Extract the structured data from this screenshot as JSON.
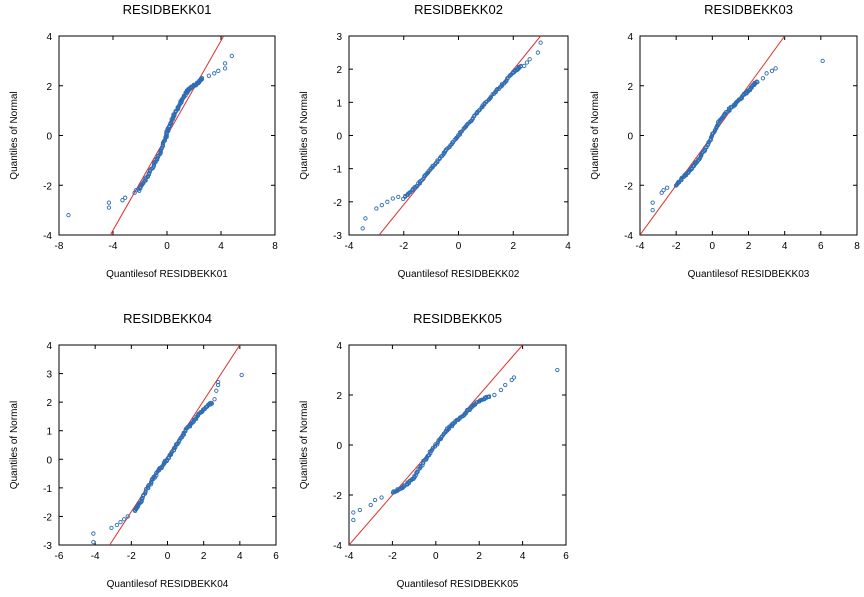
{
  "chart_data": [
    {
      "type": "scatter",
      "title": "RESIDBEKK01",
      "xlabel": "Quantilesof RESIDBEKK01",
      "ylabel": "Quantiles of Normal",
      "xlim": [
        -8,
        8
      ],
      "ylim": [
        -4,
        4
      ],
      "xticks": [
        -8,
        -4,
        0,
        4,
        8
      ],
      "yticks": [
        -4,
        -2,
        0,
        2,
        4
      ],
      "ref_line": [
        [
          -4.2,
          -4
        ],
        [
          4.2,
          4
        ]
      ],
      "dense": [
        [
          -2.1,
          -2.2
        ],
        [
          -1.6,
          -1.8
        ],
        [
          -1.0,
          -1.2
        ],
        [
          -0.5,
          -0.7
        ],
        [
          -0.1,
          -0.1
        ],
        [
          0.1,
          0.3
        ],
        [
          0.5,
          0.8
        ],
        [
          1.0,
          1.3
        ],
        [
          1.4,
          1.7
        ],
        [
          1.7,
          1.9
        ],
        [
          2.3,
          2.1
        ],
        [
          2.6,
          2.3
        ]
      ],
      "points": [
        [
          -7.3,
          -3.2
        ],
        [
          -4.3,
          -2.9
        ],
        [
          -4.3,
          -2.7
        ],
        [
          -3.3,
          -2.6
        ],
        [
          -3.1,
          -2.5
        ],
        [
          -2.4,
          -2.3
        ],
        [
          -2.3,
          -2.2
        ],
        [
          3.1,
          2.4
        ],
        [
          3.5,
          2.5
        ],
        [
          3.8,
          2.6
        ],
        [
          4.3,
          2.7
        ],
        [
          4.3,
          2.9
        ],
        [
          4.8,
          3.2
        ]
      ],
      "colors": {
        "points": "#2e6db4",
        "line": "#e0302a"
      }
    },
    {
      "type": "scatter",
      "title": "RESIDBEKK02",
      "xlabel": "Quantilesof RESIDBEKK02",
      "ylabel": "Quantiles of Normal",
      "xlim": [
        -4,
        4
      ],
      "ylim": [
        -3,
        3
      ],
      "xticks": [
        -4,
        -2,
        0,
        2,
        4
      ],
      "yticks": [
        -3,
        -2,
        -1,
        0,
        1,
        2,
        3
      ],
      "ref_line": [
        [
          -2.9,
          -3
        ],
        [
          3.0,
          3
        ]
      ],
      "dense": [
        [
          -2.0,
          -1.9
        ],
        [
          -1.5,
          -1.5
        ],
        [
          -1.0,
          -1.0
        ],
        [
          -0.5,
          -0.5
        ],
        [
          0.0,
          0.0
        ],
        [
          0.5,
          0.5
        ],
        [
          1.0,
          1.0
        ],
        [
          1.5,
          1.45
        ],
        [
          2.0,
          1.9
        ],
        [
          2.3,
          2.1
        ]
      ],
      "points": [
        [
          -3.5,
          -2.8
        ],
        [
          -3.4,
          -2.5
        ],
        [
          -3.0,
          -2.2
        ],
        [
          -2.8,
          -2.1
        ],
        [
          -2.6,
          -2.0
        ],
        [
          -2.4,
          -1.9
        ],
        [
          -2.2,
          -1.85
        ],
        [
          2.4,
          2.1
        ],
        [
          2.5,
          2.2
        ],
        [
          2.6,
          2.3
        ],
        [
          2.9,
          2.5
        ],
        [
          3.0,
          2.8
        ]
      ],
      "colors": {
        "points": "#2e6db4",
        "line": "#e0302a"
      }
    },
    {
      "type": "scatter",
      "title": "RESIDBEKK03",
      "xlabel": "Quantilesof RESIDBEKK03",
      "ylabel": "Quantiles of Normal",
      "xlim": [
        -4,
        8
      ],
      "ylim": [
        -4,
        4
      ],
      "xticks": [
        -4,
        -2,
        0,
        2,
        4,
        6,
        8
      ],
      "yticks": [
        -4,
        -2,
        0,
        2,
        4
      ],
      "ref_line": [
        [
          -4.0,
          -4
        ],
        [
          4.0,
          4
        ]
      ],
      "dense": [
        [
          -2.0,
          -2.0
        ],
        [
          -1.5,
          -1.6
        ],
        [
          -1.0,
          -1.2
        ],
        [
          -0.5,
          -0.7
        ],
        [
          0.0,
          0.0
        ],
        [
          0.4,
          0.6
        ],
        [
          1.0,
          1.1
        ],
        [
          1.5,
          1.45
        ],
        [
          2.0,
          1.8
        ],
        [
          2.5,
          2.2
        ]
      ],
      "points": [
        [
          -3.3,
          -3.0
        ],
        [
          -3.3,
          -2.7
        ],
        [
          -2.8,
          -2.3
        ],
        [
          -2.7,
          -2.2
        ],
        [
          -2.5,
          -2.1
        ],
        [
          2.8,
          2.3
        ],
        [
          3.0,
          2.5
        ],
        [
          3.3,
          2.6
        ],
        [
          3.5,
          2.7
        ],
        [
          6.1,
          3.0
        ]
      ],
      "colors": {
        "points": "#2e6db4",
        "line": "#e0302a"
      }
    },
    {
      "type": "scatter",
      "title": "RESIDBEKK04",
      "xlabel": "Quantilesof RESIDBEKK04",
      "ylabel": "Quantiles of Normal",
      "xlim": [
        -6,
        6
      ],
      "ylim": [
        -3,
        4
      ],
      "xticks": [
        -6,
        -4,
        -2,
        0,
        2,
        4,
        6
      ],
      "yticks": [
        -3,
        -2,
        -1,
        0,
        1,
        2,
        3,
        4
      ],
      "ref_line": [
        [
          -3.2,
          -3
        ],
        [
          4.0,
          4
        ]
      ],
      "dense": [
        [
          -1.8,
          -1.8
        ],
        [
          -1.5,
          -1.5
        ],
        [
          -1.0,
          -0.9
        ],
        [
          -0.5,
          -0.4
        ],
        [
          0.0,
          0.0
        ],
        [
          0.5,
          0.5
        ],
        [
          1.0,
          1.0
        ],
        [
          1.5,
          1.4
        ],
        [
          2.0,
          1.75
        ],
        [
          2.5,
          2.0
        ]
      ],
      "points": [
        [
          -4.1,
          -2.9
        ],
        [
          -4.1,
          -2.6
        ],
        [
          -3.1,
          -2.4
        ],
        [
          -2.8,
          -2.3
        ],
        [
          -2.6,
          -2.2
        ],
        [
          -2.4,
          -2.1
        ],
        [
          -2.2,
          -2.0
        ],
        [
          2.6,
          2.1
        ],
        [
          2.7,
          2.4
        ],
        [
          2.8,
          2.6
        ],
        [
          2.8,
          2.7
        ],
        [
          4.1,
          2.95
        ]
      ],
      "colors": {
        "points": "#2e6db4",
        "line": "#e0302a"
      }
    },
    {
      "type": "scatter",
      "title": "RESIDBEKK05",
      "xlabel": "Quantilesof RESIDBEKK05",
      "ylabel": "Quantiles of Normal",
      "xlim": [
        -4,
        6
      ],
      "ylim": [
        -4,
        4
      ],
      "xticks": [
        -4,
        -2,
        0,
        2,
        4,
        6
      ],
      "yticks": [
        -4,
        -2,
        0,
        2,
        4
      ],
      "ref_line": [
        [
          -4.0,
          -4
        ],
        [
          4.0,
          4
        ]
      ],
      "dense": [
        [
          -2.0,
          -1.9
        ],
        [
          -1.5,
          -1.7
        ],
        [
          -1.0,
          -1.3
        ],
        [
          -0.5,
          -0.6
        ],
        [
          0.0,
          0.0
        ],
        [
          0.5,
          0.6
        ],
        [
          1.0,
          1.0
        ],
        [
          1.5,
          1.4
        ],
        [
          2.0,
          1.75
        ],
        [
          2.5,
          1.95
        ]
      ],
      "points": [
        [
          -3.8,
          -3.0
        ],
        [
          -3.8,
          -2.7
        ],
        [
          -3.5,
          -2.6
        ],
        [
          -3.0,
          -2.4
        ],
        [
          -2.8,
          -2.2
        ],
        [
          -2.5,
          -2.1
        ],
        [
          2.7,
          2.0
        ],
        [
          3.0,
          2.2
        ],
        [
          3.2,
          2.4
        ],
        [
          3.5,
          2.6
        ],
        [
          3.6,
          2.7
        ],
        [
          5.6,
          3.0
        ]
      ],
      "colors": {
        "points": "#2e6db4",
        "line": "#e0302a"
      }
    }
  ]
}
